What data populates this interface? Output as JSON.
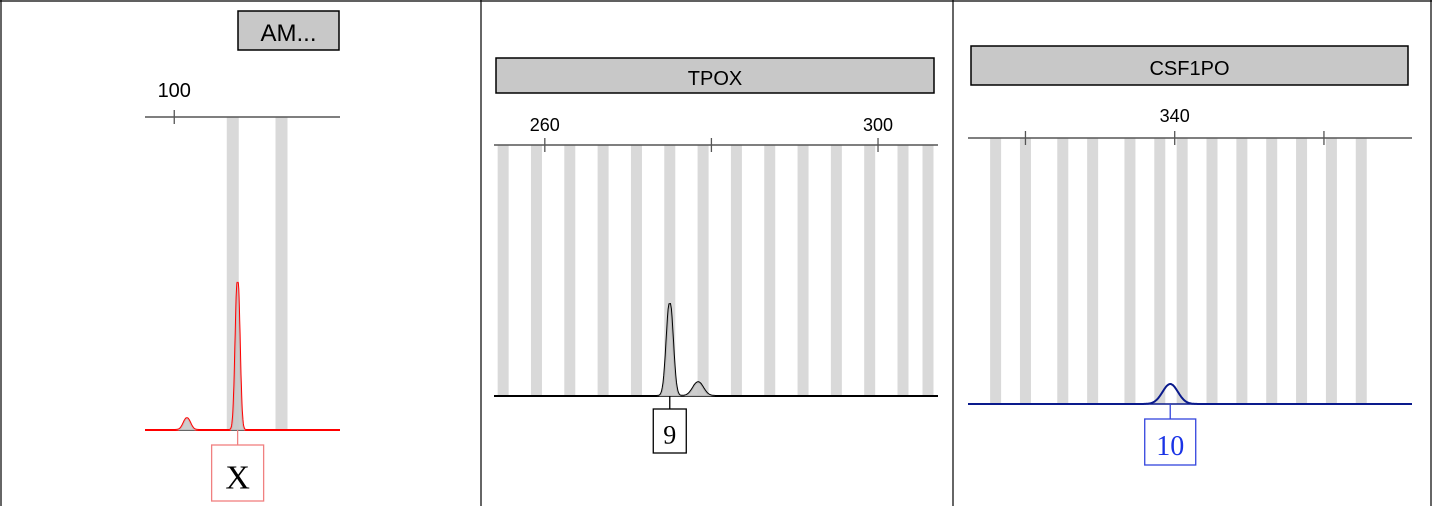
{
  "colors": {
    "bin": "#d9d9d9",
    "header_fill": "#c8c8c8",
    "amel_trace": "#ff0000",
    "tpox_trace": "#000000",
    "csf_trace": "#0a1a8c",
    "csf_peak": "#1a33e6",
    "amel_label_border": "#f08080",
    "csf_label_border": "#3344dd"
  },
  "chart_data": [
    {
      "type": "line",
      "marker": "AM...",
      "xlim": [
        97,
        117
      ],
      "ticks": [
        {
          "value": 100,
          "label": "100"
        }
      ],
      "bins": [
        106,
        111
      ],
      "series": [
        {
          "color": "#ff0000",
          "peaks": [
            {
              "x": 101.3,
              "height": 0.08
            },
            {
              "x": 106.5,
              "height": 1.0
            }
          ]
        }
      ],
      "allele_calls": [
        {
          "x": 106.5,
          "label": "X"
        }
      ]
    },
    {
      "type": "line",
      "marker": "TPOX",
      "xlim": [
        253.9,
        307.2
      ],
      "ticks": [
        {
          "value": 260,
          "label": "260"
        },
        {
          "value": 280,
          "label": ""
        },
        {
          "value": 300,
          "label": "300"
        }
      ],
      "bins": [
        255,
        259,
        263,
        267,
        271,
        275,
        279,
        283,
        287,
        291,
        295,
        299,
        303,
        306
      ],
      "series": [
        {
          "color": "#000000",
          "peaks": [
            {
              "x": 275,
              "height": 0.67
            },
            {
              "x": 278.4,
              "height": 0.1
            }
          ]
        }
      ],
      "allele_calls": [
        {
          "x": 275,
          "label": "9"
        }
      ]
    },
    {
      "type": "line",
      "marker": "CSF1PO",
      "xlim": [
        312.3,
        371.8
      ],
      "ticks": [
        {
          "value": 320,
          "label": ""
        },
        {
          "value": 340,
          "label": "340"
        },
        {
          "value": 360,
          "label": ""
        }
      ],
      "bins": [
        316,
        320,
        325,
        329,
        334,
        338,
        341,
        345,
        349,
        353,
        357,
        361,
        365
      ],
      "series": [
        {
          "color": "#0a1a8c",
          "peaks": [
            {
              "x": 339.4,
              "height": 0.08
            }
          ]
        }
      ],
      "allele_calls": [
        {
          "x": 339.4,
          "label": "10"
        }
      ]
    }
  ]
}
